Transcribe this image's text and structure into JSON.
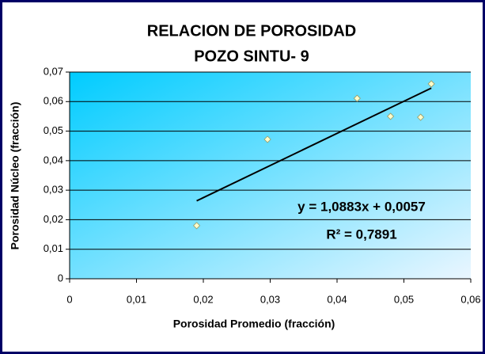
{
  "chart_data": {
    "type": "scatter",
    "title": "RELACION DE POROSIDAD",
    "subtitle": "POZO SINTU- 9",
    "xlabel": "Porosidad Promedio (fracción)",
    "ylabel": "Porosidad Núcleo (fracción)",
    "series": [
      {
        "name": "Porosidad",
        "color": "#ffffcc",
        "x": [
          0.019,
          0.0296,
          0.043,
          0.048,
          0.0525,
          0.0541
        ],
        "values": [
          0.018,
          0.0472,
          0.0611,
          0.055,
          0.0547,
          0.066
        ]
      }
    ],
    "trendline": {
      "slope": 1.0883,
      "intercept": 0.0057,
      "label": "y = 1,0883x + 0,0057",
      "color": "#000000"
    },
    "r2": {
      "value": 0.7891,
      "label": "R² = 0,7891"
    },
    "xlim": [
      0,
      0.06
    ],
    "xticks": [
      0,
      {
        "value": 0.01,
        "label": "0,01"
      },
      {
        "value": 0.02,
        "label": "0,02"
      },
      {
        "value": 0.03,
        "label": "0,03"
      },
      {
        "value": 0.04,
        "label": "0,04"
      },
      {
        "value": 0.05,
        "label": "0,05"
      },
      {
        "value": 0.06,
        "label": "0,06"
      }
    ],
    "ylim": [
      0,
      0.07
    ],
    "yticks": [
      0,
      {
        "value": 0.01,
        "label": "0,01"
      },
      {
        "value": 0.02,
        "label": "0,02"
      },
      {
        "value": 0.03,
        "label": "0,03"
      },
      {
        "value": 0.04,
        "label": "0,04"
      },
      {
        "value": 0.05,
        "label": "0,05"
      },
      {
        "value": 0.06,
        "label": "0,06"
      },
      {
        "value": 0.07,
        "label": "0,07"
      }
    ],
    "grid": true
  }
}
